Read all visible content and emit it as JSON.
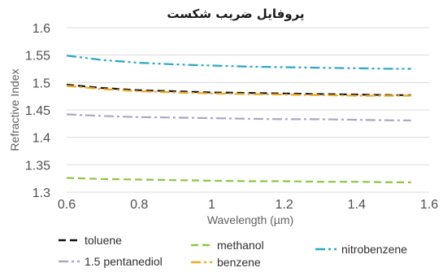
{
  "chart_data": {
    "type": "line",
    "title": "پروفایل ضریب شکست",
    "xlabel": "Wavelength (µm)",
    "ylabel": "Refractive Index",
    "xlim": [
      0.6,
      1.6
    ],
    "ylim": [
      1.3,
      1.6
    ],
    "xticks": [
      "0.6",
      "0.8",
      "1",
      "1.2",
      "1.4",
      "1.6"
    ],
    "yticks": [
      "1.3",
      "1.35",
      "1.4",
      "1.45",
      "1.5",
      "1.55",
      "1.6"
    ],
    "grid": "horizontal",
    "legend_position": "bottom",
    "series": [
      {
        "name": "toluene",
        "color": "#111111",
        "dash": "dash",
        "x": [
          0.6,
          0.7,
          0.8,
          0.9,
          1.0,
          1.1,
          1.2,
          1.3,
          1.4,
          1.5,
          1.55
        ],
        "y": [
          1.496,
          1.49,
          1.486,
          1.484,
          1.482,
          1.481,
          1.48,
          1.479,
          1.478,
          1.477,
          1.477
        ]
      },
      {
        "name": "methanol",
        "color": "#8dc63f",
        "dash": "dash",
        "x": [
          0.6,
          0.7,
          0.8,
          0.9,
          1.0,
          1.1,
          1.2,
          1.3,
          1.4,
          1.5,
          1.55
        ],
        "y": [
          1.326,
          1.324,
          1.323,
          1.322,
          1.321,
          1.32,
          1.32,
          1.319,
          1.319,
          1.318,
          1.318
        ]
      },
      {
        "name": "nitrobenzene",
        "color": "#2aa8c9",
        "dash": "dashdotdot",
        "x": [
          0.6,
          0.7,
          0.8,
          0.9,
          1.0,
          1.1,
          1.2,
          1.3,
          1.4,
          1.5,
          1.55
        ],
        "y": [
          1.549,
          1.541,
          1.536,
          1.533,
          1.531,
          1.529,
          1.528,
          1.527,
          1.526,
          1.525,
          1.525
        ]
      },
      {
        "name": "1.5 pentanediol",
        "color": "#a9a7c6",
        "dash": "dashdot",
        "x": [
          0.6,
          0.7,
          0.8,
          0.9,
          1.0,
          1.1,
          1.2,
          1.3,
          1.4,
          1.5,
          1.55
        ],
        "y": [
          1.442,
          1.439,
          1.437,
          1.436,
          1.435,
          1.434,
          1.433,
          1.433,
          1.432,
          1.431,
          1.431
        ]
      },
      {
        "name": "benzene",
        "color": "#f0a81c",
        "dash": "dashdot",
        "x": [
          0.6,
          0.7,
          0.8,
          0.9,
          1.0,
          1.1,
          1.2,
          1.3,
          1.4,
          1.5,
          1.55
        ],
        "y": [
          1.494,
          1.488,
          1.484,
          1.482,
          1.48,
          1.479,
          1.478,
          1.477,
          1.476,
          1.476,
          1.476
        ]
      }
    ]
  }
}
